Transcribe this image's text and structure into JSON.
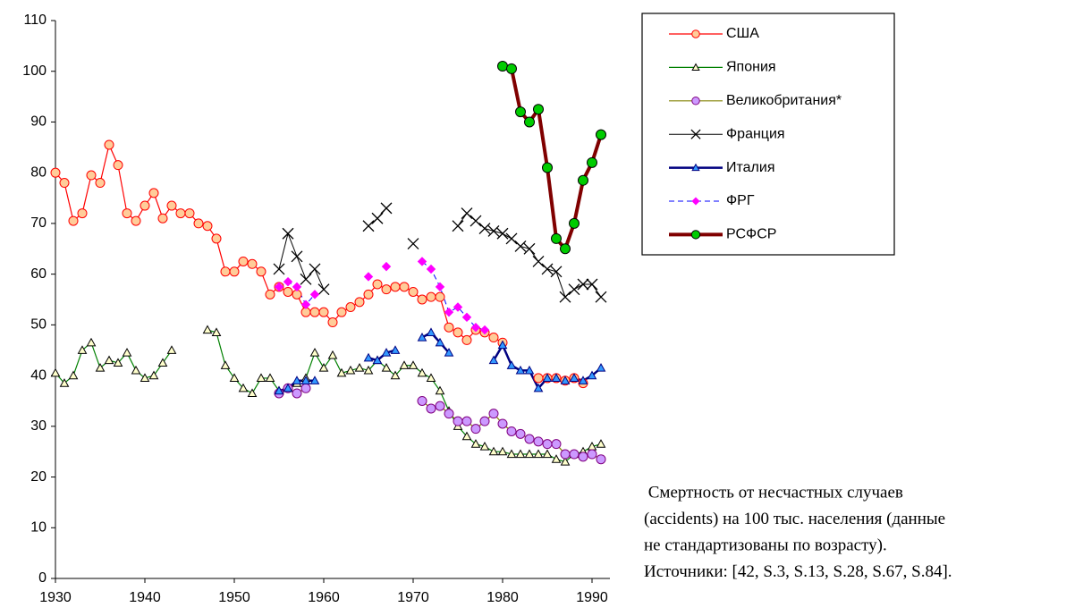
{
  "chart_data": {
    "type": "line",
    "x": [
      1930,
      1931,
      1932,
      1933,
      1934,
      1935,
      1936,
      1937,
      1938,
      1939,
      1940,
      1941,
      1942,
      1943,
      1944,
      1945,
      1946,
      1947,
      1948,
      1949,
      1950,
      1951,
      1952,
      1953,
      1954,
      1955,
      1956,
      1957,
      1958,
      1959,
      1960,
      1961,
      1962,
      1963,
      1964,
      1965,
      1966,
      1967,
      1968,
      1969,
      1970,
      1971,
      1972,
      1973,
      1974,
      1975,
      1976,
      1977,
      1978,
      1979,
      1980,
      1981,
      1982,
      1983,
      1984,
      1985,
      1986,
      1987,
      1988,
      1989,
      1990,
      1991
    ],
    "xlim": [
      1930,
      1992
    ],
    "xticks": [
      1930,
      1940,
      1950,
      1960,
      1970,
      1980,
      1990
    ],
    "ylim": [
      0,
      110
    ],
    "yticks": [
      0,
      10,
      20,
      30,
      40,
      50,
      60,
      70,
      80,
      90,
      100,
      110
    ],
    "grid": false,
    "legend": "right",
    "series": [
      {
        "name": "США",
        "color": "#ff0000",
        "marker": "circle",
        "marker_color": "#ffcc99",
        "marker_edge": "#ff0000",
        "line_width": 1.2,
        "values": [
          80,
          78,
          70.5,
          72,
          79.5,
          78,
          85.5,
          81.5,
          72,
          70.5,
          73.5,
          76,
          71,
          73.5,
          72,
          72,
          70,
          69.5,
          67,
          60.5,
          60.5,
          62.5,
          62,
          60.5,
          56,
          57.5,
          56.5,
          56,
          52.5,
          52.5,
          52.5,
          50.5,
          52.5,
          53.5,
          54.5,
          56,
          58,
          57,
          57.5,
          57.5,
          56.5,
          55,
          55.5,
          55.5,
          49.5,
          48.5,
          47,
          49,
          48.5,
          47.5,
          46.5,
          null,
          null,
          null,
          39.5,
          39.5,
          39.5,
          39,
          39.5,
          38.5,
          null,
          null
        ]
      },
      {
        "name": "Япония",
        "color": "#008000",
        "marker": "triangle",
        "marker_color": "#ffffcc",
        "marker_edge": "#000000",
        "line_width": 1.2,
        "values": [
          40.5,
          38.5,
          40,
          45,
          46.5,
          41.5,
          43,
          42.5,
          44.5,
          41,
          39.5,
          40,
          42.5,
          45,
          null,
          null,
          null,
          49,
          48.5,
          42,
          39.5,
          37.5,
          36.5,
          39.5,
          39.5,
          37,
          37.5,
          38.5,
          39.5,
          44.5,
          41.5,
          44,
          40.5,
          41,
          41.5,
          41,
          43,
          41.5,
          40,
          42,
          42,
          40.5,
          39.5,
          37,
          33,
          30,
          28,
          26.5,
          26,
          25,
          25,
          24.5,
          24.5,
          24.5,
          24.5,
          24.5,
          23.5,
          23,
          24.5,
          25,
          26,
          26.5
        ]
      },
      {
        "name": "Великобритания*",
        "color": "#808000",
        "marker": "circle",
        "marker_color": "#cc99ff",
        "marker_edge": "#800080",
        "line_width": 1.2,
        "values": [
          null,
          null,
          null,
          null,
          null,
          null,
          null,
          null,
          null,
          null,
          null,
          null,
          null,
          null,
          null,
          null,
          null,
          null,
          null,
          null,
          null,
          null,
          null,
          null,
          null,
          36.5,
          37.5,
          36.5,
          37.5,
          null,
          null,
          null,
          null,
          null,
          null,
          null,
          null,
          null,
          null,
          null,
          null,
          35,
          33.5,
          34,
          32.5,
          31,
          31,
          29.5,
          31,
          32.5,
          30.5,
          29,
          28.5,
          27.5,
          27,
          26.5,
          26.5,
          24.5,
          24.5,
          24,
          24.5,
          23.5
        ]
      },
      {
        "name": "Франция",
        "color": "#000000",
        "marker": "x",
        "marker_color": "#000000",
        "marker_edge": "#000000",
        "line_width": 1,
        "values": [
          null,
          null,
          null,
          null,
          null,
          null,
          null,
          null,
          null,
          null,
          null,
          null,
          null,
          null,
          null,
          null,
          null,
          null,
          null,
          null,
          null,
          null,
          null,
          null,
          null,
          61,
          68,
          63.5,
          59,
          61,
          57,
          null,
          null,
          null,
          null,
          69.5,
          71,
          73,
          null,
          null,
          66,
          null,
          null,
          null,
          null,
          69.5,
          72,
          70.5,
          69,
          68.5,
          68,
          67,
          65.5,
          65,
          62.5,
          61,
          60.5,
          55.5,
          57,
          58,
          58,
          55.5
        ]
      },
      {
        "name": "Италия",
        "color": "#000080",
        "marker": "triangle",
        "marker_color": "#3399ff",
        "marker_edge": "#000080",
        "line_width": 2.5,
        "values": [
          null,
          null,
          null,
          null,
          null,
          null,
          null,
          null,
          null,
          null,
          null,
          null,
          null,
          null,
          null,
          null,
          null,
          null,
          null,
          null,
          null,
          null,
          null,
          null,
          null,
          37,
          37.5,
          39,
          39,
          39,
          null,
          null,
          null,
          null,
          null,
          43.5,
          43,
          44.5,
          45,
          null,
          null,
          47.5,
          48.5,
          46.5,
          44.5,
          null,
          null,
          null,
          null,
          43,
          46,
          42,
          41,
          41,
          37.5,
          39.5,
          39.5,
          39,
          39.5,
          39,
          40,
          41.5
        ]
      },
      {
        "name": "ФРГ",
        "color": "#0000ff",
        "marker": "diamond",
        "marker_color": "#ff00ff",
        "marker_edge": "#ff00ff",
        "line_width": 1,
        "dash": true,
        "values": [
          null,
          null,
          null,
          null,
          null,
          null,
          null,
          null,
          null,
          null,
          null,
          null,
          null,
          null,
          null,
          null,
          null,
          null,
          null,
          null,
          null,
          null,
          null,
          null,
          null,
          57.5,
          58.5,
          57.5,
          54,
          56,
          null,
          null,
          null,
          null,
          null,
          59.5,
          null,
          61.5,
          null,
          null,
          null,
          62.5,
          61,
          57.5,
          52.5,
          53.5,
          51.5,
          49.5,
          49,
          null,
          null,
          null,
          null,
          null,
          null,
          null,
          null,
          null,
          null,
          null,
          null,
          null
        ]
      },
      {
        "name": "РСФСР",
        "color": "#800000",
        "marker": "circle",
        "marker_color": "#00cc00",
        "marker_edge": "#000000",
        "line_width": 4,
        "values": [
          null,
          null,
          null,
          null,
          null,
          null,
          null,
          null,
          null,
          null,
          null,
          null,
          null,
          null,
          null,
          null,
          null,
          null,
          null,
          null,
          null,
          null,
          null,
          null,
          null,
          null,
          null,
          null,
          null,
          null,
          null,
          null,
          null,
          null,
          null,
          null,
          null,
          null,
          null,
          null,
          null,
          null,
          null,
          null,
          null,
          null,
          null,
          null,
          null,
          null,
          101,
          100.5,
          92,
          90,
          92.5,
          81,
          67,
          65,
          70,
          78.5,
          82,
          87.5
        ]
      }
    ],
    "annotation": [
      " Смертность от несчастных случаев",
      "(accidents) на 100 тыс. населения (данные",
      "не стандартизованы по возрасту).",
      "Источники: [42, S.3, S.13, S.28, S.67, S.84]."
    ]
  }
}
